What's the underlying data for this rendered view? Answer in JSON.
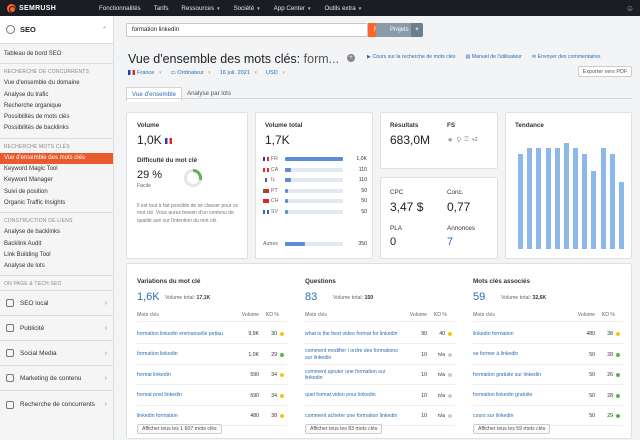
{
  "topbar": {
    "logo": "SEMRUSH",
    "nav": [
      {
        "label": "Fonctionnalités",
        "caret": false
      },
      {
        "label": "Tarifs",
        "caret": false
      },
      {
        "label": "Ressources",
        "caret": true
      },
      {
        "label": "Société",
        "caret": true
      },
      {
        "label": "App Center",
        "caret": true
      },
      {
        "label": "Outils extra",
        "caret": true
      }
    ]
  },
  "sidebar": {
    "section_title": "SEO",
    "items_top": [
      "Tableau de bord SEO"
    ],
    "group1": "RECHERCHE DE CONCURRENTS",
    "group1_items": [
      "Vue d'ensemble du domaine",
      "Analyse du trafic",
      "Recherche organique",
      "Possibilités de mots clés",
      "Possibilités de backlinks"
    ],
    "group2": "RECHERCHE MOTS CLÉS",
    "group2_items": [
      "Vue d'ensemble des mots clés",
      "Keyword Magic Tool",
      "Keyword Manager",
      "Suivi de position",
      "Organic Traffic Insights"
    ],
    "group3": "CONSTRUCTION DE LIENS",
    "group3_items": [
      "Analyse de backlinks",
      "Backlink Audit",
      "Link Building Tool",
      "Analyse de lots"
    ],
    "group4": "ON PAGE & TECH SEO",
    "sections": [
      "SEO local",
      "Publicité",
      "Social Media",
      "Marketing de contenu",
      "Recherche de concurrents"
    ]
  },
  "search": {
    "query": "formation linkedin",
    "database": "",
    "button": "Recherche",
    "projects": "Projets",
    "projects_plus": "+"
  },
  "page": {
    "title": "Vue d'ensemble des mots clés:",
    "title_kw": "form...",
    "links": [
      "Cours sur la recherche de mots clés",
      "Manuel de l'utilisateur",
      "Envoyer des commentaires"
    ],
    "filters": {
      "country": "France",
      "device": "Ordinateur",
      "date": "16 juil. 2021",
      "currency": "USD"
    },
    "export": "Exporter vers PDF",
    "tabs": [
      "Vue d'ensemble",
      "Analyse par lots"
    ]
  },
  "volume": {
    "label": "Volume",
    "value": "1,0K"
  },
  "difficulty": {
    "label": "Difficulté du mot clé",
    "value": "29 %",
    "level": "Facile",
    "percent": 29,
    "help": "Il est tout à fait possible de se classer pour ce mot clé. Vous aurez besoin d'un contenu de qualité axé sur l'intention du mot clé."
  },
  "global_volume": {
    "label": "Volume total",
    "value": "1,7K",
    "rows": [
      {
        "code": "FR",
        "value": "1,0K",
        "pct": 100
      },
      {
        "code": "CA",
        "value": "110",
        "pct": 11
      },
      {
        "code": "IL",
        "value": "110",
        "pct": 11
      },
      {
        "code": "PT",
        "value": "50",
        "pct": 5
      },
      {
        "code": "CH",
        "value": "50",
        "pct": 5
      },
      {
        "code": "SV",
        "value": "50",
        "pct": 5
      }
    ],
    "others_label": "Autres",
    "others_value": "350",
    "others_pct": 35
  },
  "results": {
    "label": "Résultats",
    "value": "683,0M"
  },
  "fs": {
    "label": "FS",
    "extra": "+2"
  },
  "cpc": {
    "label": "CPC",
    "value": "3,47 $"
  },
  "competition": {
    "label": "Conc.",
    "value": "0,77"
  },
  "pla": {
    "label": "PLA",
    "value": "0"
  },
  "ads": {
    "label": "Annonces",
    "value": "7"
  },
  "trend": {
    "label": "Tendance",
    "values": [
      0.85,
      0.9,
      0.9,
      0.9,
      0.9,
      0.95,
      0.9,
      0.85,
      0.7,
      0.9,
      0.85,
      0.6
    ]
  },
  "variations": {
    "label": "Variations du mot clé",
    "count": "1,6K",
    "total_label": "Volume total:",
    "total": "17,1K",
    "columns": [
      "Mots clés",
      "Volume",
      "KD %"
    ],
    "rows": [
      {
        "kw": "formation linkedin emmanuelle petiau",
        "vol": "9,9K",
        "kd": "30",
        "dot": "#f5c518"
      },
      {
        "kw": "formation linkedin",
        "vol": "1,0K",
        "kd": "29",
        "dot": "#58b54a"
      },
      {
        "kw": "format linkedin",
        "vol": "590",
        "kd": "34",
        "dot": "#f5c518"
      },
      {
        "kw": "format post linkedin",
        "vol": "590",
        "kd": "34",
        "dot": "#f5c518"
      },
      {
        "kw": "linkedin formation",
        "vol": "480",
        "kd": "38",
        "dot": "#f5c518"
      }
    ],
    "show_all": "Afficher tous les 1 607 mots clés"
  },
  "questions": {
    "label": "Questions",
    "count": "83",
    "total_label": "Volume total:",
    "total": "150",
    "columns": [
      "Mots clés",
      "Volume",
      "KD %"
    ],
    "rows": [
      {
        "kw": "what is the best video format for linkedin",
        "vol": "90",
        "kd": "40",
        "dot": "#f5c518"
      },
      {
        "kw": "comment modifier l ordre des formations sur linkedin",
        "vol": "10",
        "kd": "n/a",
        "dot": "#ccc"
      },
      {
        "kw": "comment ajouter une formation sur linkedin",
        "vol": "10",
        "kd": "n/a",
        "dot": "#ccc"
      },
      {
        "kw": "quel format video pour linkedin",
        "vol": "10",
        "kd": "n/a",
        "dot": "#ccc"
      },
      {
        "kw": "comment acheter une formation linkedin",
        "vol": "10",
        "kd": "n/a",
        "dot": "#ccc"
      }
    ],
    "show_all": "Afficher tous les 83 mots clés"
  },
  "related": {
    "label": "Mots clés associés",
    "count": "59",
    "total_label": "Volume total:",
    "total": "32,6K",
    "columns": [
      "Mots clés",
      "Volume",
      "KD %"
    ],
    "rows": [
      {
        "kw": "linkedin formation",
        "vol": "480",
        "kd": "38",
        "dot": "#f5c518"
      },
      {
        "kw": "se former à linkedin",
        "vol": "50",
        "kd": "28",
        "dot": "#58b54a"
      },
      {
        "kw": "formation gratuite sur linkedin",
        "vol": "50",
        "kd": "26",
        "dot": "#58b54a"
      },
      {
        "kw": "formation linkedin gratuite",
        "vol": "50",
        "kd": "28",
        "dot": "#58b54a"
      },
      {
        "kw": "cours sur linkedin",
        "vol": "50",
        "kd": "29",
        "dot": "#58b54a"
      }
    ],
    "show_all": "Afficher tous les 59 mots clés"
  }
}
